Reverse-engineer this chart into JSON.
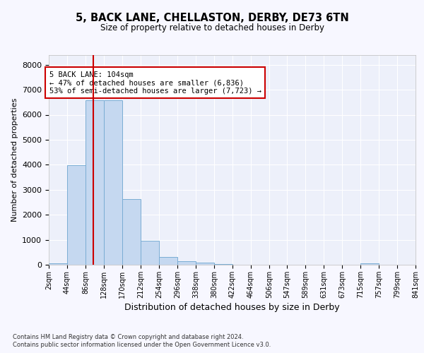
{
  "title1": "5, BACK LANE, CHELLASTON, DERBY, DE73 6TN",
  "title2": "Size of property relative to detached houses in Derby",
  "xlabel": "Distribution of detached houses by size in Derby",
  "ylabel": "Number of detached properties",
  "footer1": "Contains HM Land Registry data © Crown copyright and database right 2024.",
  "footer2": "Contains public sector information licensed under the Open Government Licence v3.0.",
  "annotation_line1": "5 BACK LANE: 104sqm",
  "annotation_line2": "← 47% of detached houses are smaller (6,836)",
  "annotation_line3": "53% of semi-detached houses are larger (7,723) →",
  "bar_color": "#c5d8f0",
  "bar_edge_color": "#7aadd4",
  "vline_color": "#cc0000",
  "annotation_box_edge_color": "#cc0000",
  "bin_edges": [
    2,
    44,
    86,
    128,
    170,
    212,
    254,
    296,
    338,
    380,
    422,
    464,
    506,
    547,
    589,
    631,
    673,
    715,
    757,
    799,
    841
  ],
  "bin_counts": [
    50,
    3980,
    6580,
    6580,
    2620,
    950,
    320,
    155,
    75,
    30,
    10,
    5,
    3,
    2,
    1,
    1,
    1,
    50,
    0,
    0
  ],
  "property_size": 104,
  "ylim": [
    0,
    8400
  ],
  "yticks": [
    0,
    1000,
    2000,
    3000,
    4000,
    5000,
    6000,
    7000,
    8000
  ],
  "background_color": "#f7f7ff",
  "plot_background": "#edf0fa"
}
